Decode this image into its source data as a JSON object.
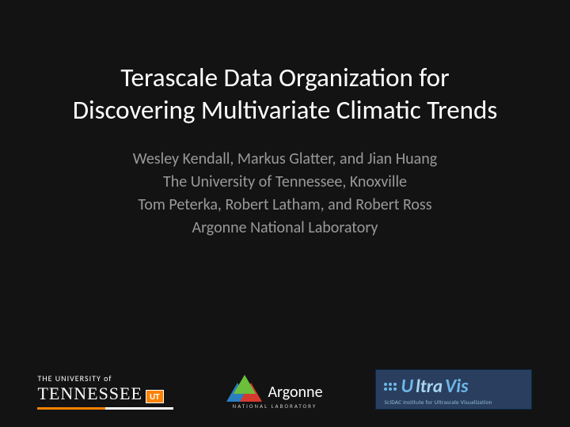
{
  "slide": {
    "background_color": "#131313",
    "title": {
      "text": "Terascale Data Organization for Discovering Multivariate Climatic Trends",
      "color": "#ffffff",
      "fontsize": 33,
      "line_height": 1.25
    },
    "credits": {
      "color": "#999999",
      "fontsize": 20,
      "line_height": 1.45,
      "lines": [
        "Wesley Kendall, Markus Glatter, and Jian Huang",
        "The University of Tennessee, Knoxville",
        "Tom Peterka, Robert Latham, and Robert Ross",
        "Argonne National Laboratory"
      ]
    }
  },
  "logos": {
    "ut": {
      "line1": "THE UNIVERSITY of",
      "line2": "TENNESSEE",
      "badge": "UT",
      "bar_colors": [
        "#ff8200",
        "#ffffff"
      ],
      "text_color": "#ffffff"
    },
    "argonne": {
      "name": "Argonne",
      "sub": "NATIONAL LABORATORY",
      "triangle_colors": {
        "blue": "#2a7fbf",
        "green": "#6cbf3a",
        "red": "#d63a2f"
      },
      "text_color": "#ffffff"
    },
    "ultravis": {
      "prefix": "U",
      "mid": "ltra",
      "suffix": "Vis",
      "tagline": "SciDAC Institute for Ultrascale Visualization",
      "bg_color": "#2a3f5f",
      "accent_color": "#6fb7e8",
      "light_color": "#a8d5f2",
      "border_color": "#0a2a4a"
    }
  }
}
